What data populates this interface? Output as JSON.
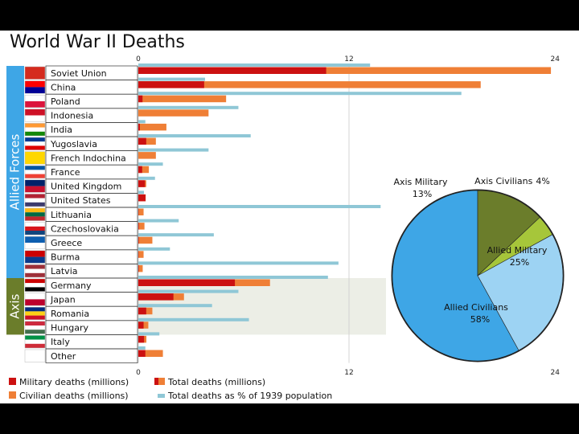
{
  "chart_data": {
    "type": "bar",
    "title": "World War II Deaths",
    "axis": {
      "min": 0,
      "max": 24,
      "ticks": [
        "0",
        "12",
        "24"
      ]
    },
    "groups": [
      {
        "name": "Allied Forces",
        "from": 0,
        "to": 15
      },
      {
        "name": "Axis",
        "from": 15,
        "to": 19
      }
    ],
    "categories": [
      "Soviet Union",
      "China",
      "Poland",
      "Indonesia",
      "India",
      "Yugoslavia",
      "French Indochina",
      "France",
      "United Kingdom",
      "United States",
      "Lithuania",
      "Czechoslovakia",
      "Greece",
      "Burma",
      "Latvia",
      "Germany",
      "Japan",
      "Romania",
      "Hungary",
      "Italy",
      "Other"
    ],
    "flags": [
      [
        "#d52b1e"
      ],
      [
        "#fe0000",
        "#000095"
      ],
      [
        "#ffffff",
        "#dc143c"
      ],
      [
        "#ce1126",
        "#ffffff"
      ],
      [
        "#ff9933",
        "#ffffff",
        "#138808"
      ],
      [
        "#003893",
        "#ffffff",
        "#de0000"
      ],
      [
        "#ffd700"
      ],
      [
        "#0055a4",
        "#ffffff",
        "#ef4135"
      ],
      [
        "#012169",
        "#c8102e"
      ],
      [
        "#b22234",
        "#ffffff",
        "#3c3b6e"
      ],
      [
        "#fdb913",
        "#006a44",
        "#c1272d"
      ],
      [
        "#ffffff",
        "#d7141a",
        "#11457e"
      ],
      [
        "#0d5eaf",
        "#ffffff"
      ],
      [
        "#cc0000",
        "#0a3a8c"
      ],
      [
        "#9e3039",
        "#ffffff",
        "#9e3039"
      ],
      [
        "#cc0000",
        "#ffffff",
        "#000000"
      ],
      [
        "#ffffff",
        "#bc002d"
      ],
      [
        "#002b7f",
        "#fcd116",
        "#ce1126"
      ],
      [
        "#cd2a3e",
        "#ffffff",
        "#436f4d"
      ],
      [
        "#009246",
        "#ffffff",
        "#ce2b37"
      ],
      [
        "#ffffff"
      ]
    ],
    "series": [
      {
        "name": "Military deaths (millions)",
        "color": "#cc1111",
        "values": [
          10.7,
          3.75,
          0.24,
          0,
          0.09,
          0.45,
          0,
          0.22,
          0.38,
          0.41,
          0.02,
          0.03,
          0.03,
          0.02,
          0.03,
          5.5,
          2.0,
          0.45,
          0.3,
          0.33,
          0.4
        ]
      },
      {
        "name": "Total deaths (millions)",
        "color": "#ef7f36",
        "values": [
          23.5,
          19.5,
          5.0,
          4.0,
          1.6,
          1.0,
          1.0,
          0.6,
          0.45,
          0.42,
          0.3,
          0.35,
          0.8,
          0.3,
          0.25,
          7.5,
          2.6,
          0.8,
          0.57,
          0.46,
          1.4
        ]
      },
      {
        "name": "Total deaths as % of 1939 population",
        "color": "#8fc7d6",
        "values": [
          13.2,
          3.8,
          18.4,
          5.7,
          0.4,
          6.4,
          4.0,
          1.4,
          0.95,
          0.32,
          13.8,
          2.3,
          4.3,
          1.8,
          11.4,
          10.8,
          5.7,
          4.2,
          6.3,
          1.2,
          0.4
        ]
      }
    ],
    "pie": {
      "type": "pie",
      "slices": [
        {
          "label": "Allied Civilians",
          "value": 58,
          "text": "58%",
          "color": "#3ea6e6"
        },
        {
          "label": "Axis Military",
          "value": 13,
          "text": "13%",
          "color": "#6b7d2b"
        },
        {
          "label": "Axis Civilians",
          "value": 4,
          "text": "4%",
          "color": "#a6c63a"
        },
        {
          "label": "Allied Military",
          "value": 25,
          "text": "25%",
          "color": "#9dd3f3"
        }
      ]
    }
  }
}
